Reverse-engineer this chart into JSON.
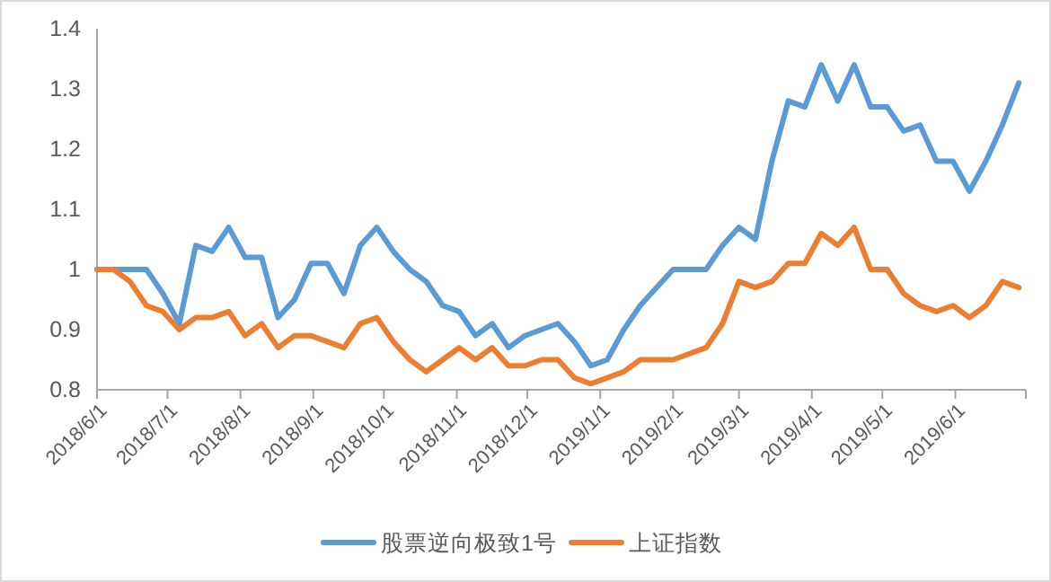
{
  "chart_data": {
    "type": "line",
    "x": [
      "2018-06-01",
      "2018-06-08",
      "2018-06-15",
      "2018-06-22",
      "2018-06-29",
      "2018-07-06",
      "2018-07-13",
      "2018-07-20",
      "2018-07-27",
      "2018-08-03",
      "2018-08-10",
      "2018-08-17",
      "2018-08-24",
      "2018-08-31",
      "2018-09-07",
      "2018-09-14",
      "2018-09-21",
      "2018-09-28",
      "2018-10-05",
      "2018-10-12",
      "2018-10-19",
      "2018-10-26",
      "2018-11-02",
      "2018-11-09",
      "2018-11-16",
      "2018-11-23",
      "2018-11-30",
      "2018-12-07",
      "2018-12-14",
      "2018-12-21",
      "2018-12-28",
      "2019-01-04",
      "2019-01-11",
      "2019-01-18",
      "2019-01-25",
      "2019-02-01",
      "2019-02-08",
      "2019-02-15",
      "2019-02-22",
      "2019-03-01",
      "2019-03-08",
      "2019-03-15",
      "2019-03-22",
      "2019-03-29",
      "2019-04-05",
      "2019-04-12",
      "2019-04-19",
      "2019-04-26",
      "2019-05-03",
      "2019-05-10",
      "2019-05-17",
      "2019-05-24",
      "2019-05-31",
      "2019-06-07",
      "2019-06-14",
      "2019-06-21",
      "2019-06-28"
    ],
    "series": [
      {
        "name": "股票逆向极致1号",
        "color": "#5b9bd5",
        "values": [
          1,
          1,
          1,
          1,
          0.96,
          0.91,
          1.04,
          1.03,
          1.07,
          1.02,
          1.02,
          0.92,
          0.95,
          1.01,
          1.01,
          0.96,
          1.04,
          1.07,
          1.03,
          1.0,
          0.98,
          0.94,
          0.93,
          0.89,
          0.91,
          0.87,
          0.89,
          0.9,
          0.91,
          0.88,
          0.84,
          0.85,
          0.9,
          0.94,
          0.97,
          1.0,
          1.0,
          1.0,
          1.04,
          1.07,
          1.05,
          1.18,
          1.28,
          1.27,
          1.34,
          1.28,
          1.34,
          1.27,
          1.27,
          1.23,
          1.24,
          1.18,
          1.18,
          1.13,
          1.18,
          1.24,
          1.31
        ]
      },
      {
        "name": "上证指数",
        "color": "#ed7d31",
        "values": [
          1,
          1,
          0.98,
          0.94,
          0.93,
          0.9,
          0.92,
          0.92,
          0.93,
          0.89,
          0.91,
          0.87,
          0.89,
          0.89,
          0.88,
          0.87,
          0.91,
          0.92,
          0.88,
          0.85,
          0.83,
          0.85,
          0.87,
          0.85,
          0.87,
          0.84,
          0.84,
          0.85,
          0.85,
          0.82,
          0.81,
          0.82,
          0.83,
          0.85,
          0.85,
          0.85,
          0.86,
          0.87,
          0.91,
          0.98,
          0.97,
          0.98,
          1.01,
          1.01,
          1.06,
          1.04,
          1.07,
          1.0,
          1.0,
          0.96,
          0.94,
          0.93,
          0.94,
          0.92,
          0.94,
          0.98,
          0.97
        ]
      }
    ],
    "xlim": [
      "2018-06-01",
      "2019-07-01"
    ],
    "xticks": [
      {
        "value": "2018-06-01",
        "label": "2018/6/1"
      },
      {
        "value": "2018-07-01",
        "label": "2018/7/1"
      },
      {
        "value": "2018-08-01",
        "label": "2018/8/1"
      },
      {
        "value": "2018-09-01",
        "label": "2018/9/1"
      },
      {
        "value": "2018-10-01",
        "label": "2018/10/1"
      },
      {
        "value": "2018-11-01",
        "label": "2018/11/1"
      },
      {
        "value": "2018-12-01",
        "label": "2018/12/1"
      },
      {
        "value": "2019-01-01",
        "label": "2019/1/1"
      },
      {
        "value": "2019-02-01",
        "label": "2019/2/1"
      },
      {
        "value": "2019-03-01",
        "label": "2019/3/1"
      },
      {
        "value": "2019-04-01",
        "label": "2019/4/1"
      },
      {
        "value": "2019-05-01",
        "label": "2019/5/1"
      },
      {
        "value": "2019-06-01",
        "label": "2019/6/1"
      },
      {
        "value": "2019-07-01",
        "label": null
      }
    ],
    "ylim": [
      0.8,
      1.4
    ],
    "yticks": [
      0.8,
      0.9,
      1,
      1.1,
      1.2,
      1.3,
      1.4
    ],
    "legend": "bottom",
    "marker": "none",
    "line_style": "solid"
  }
}
